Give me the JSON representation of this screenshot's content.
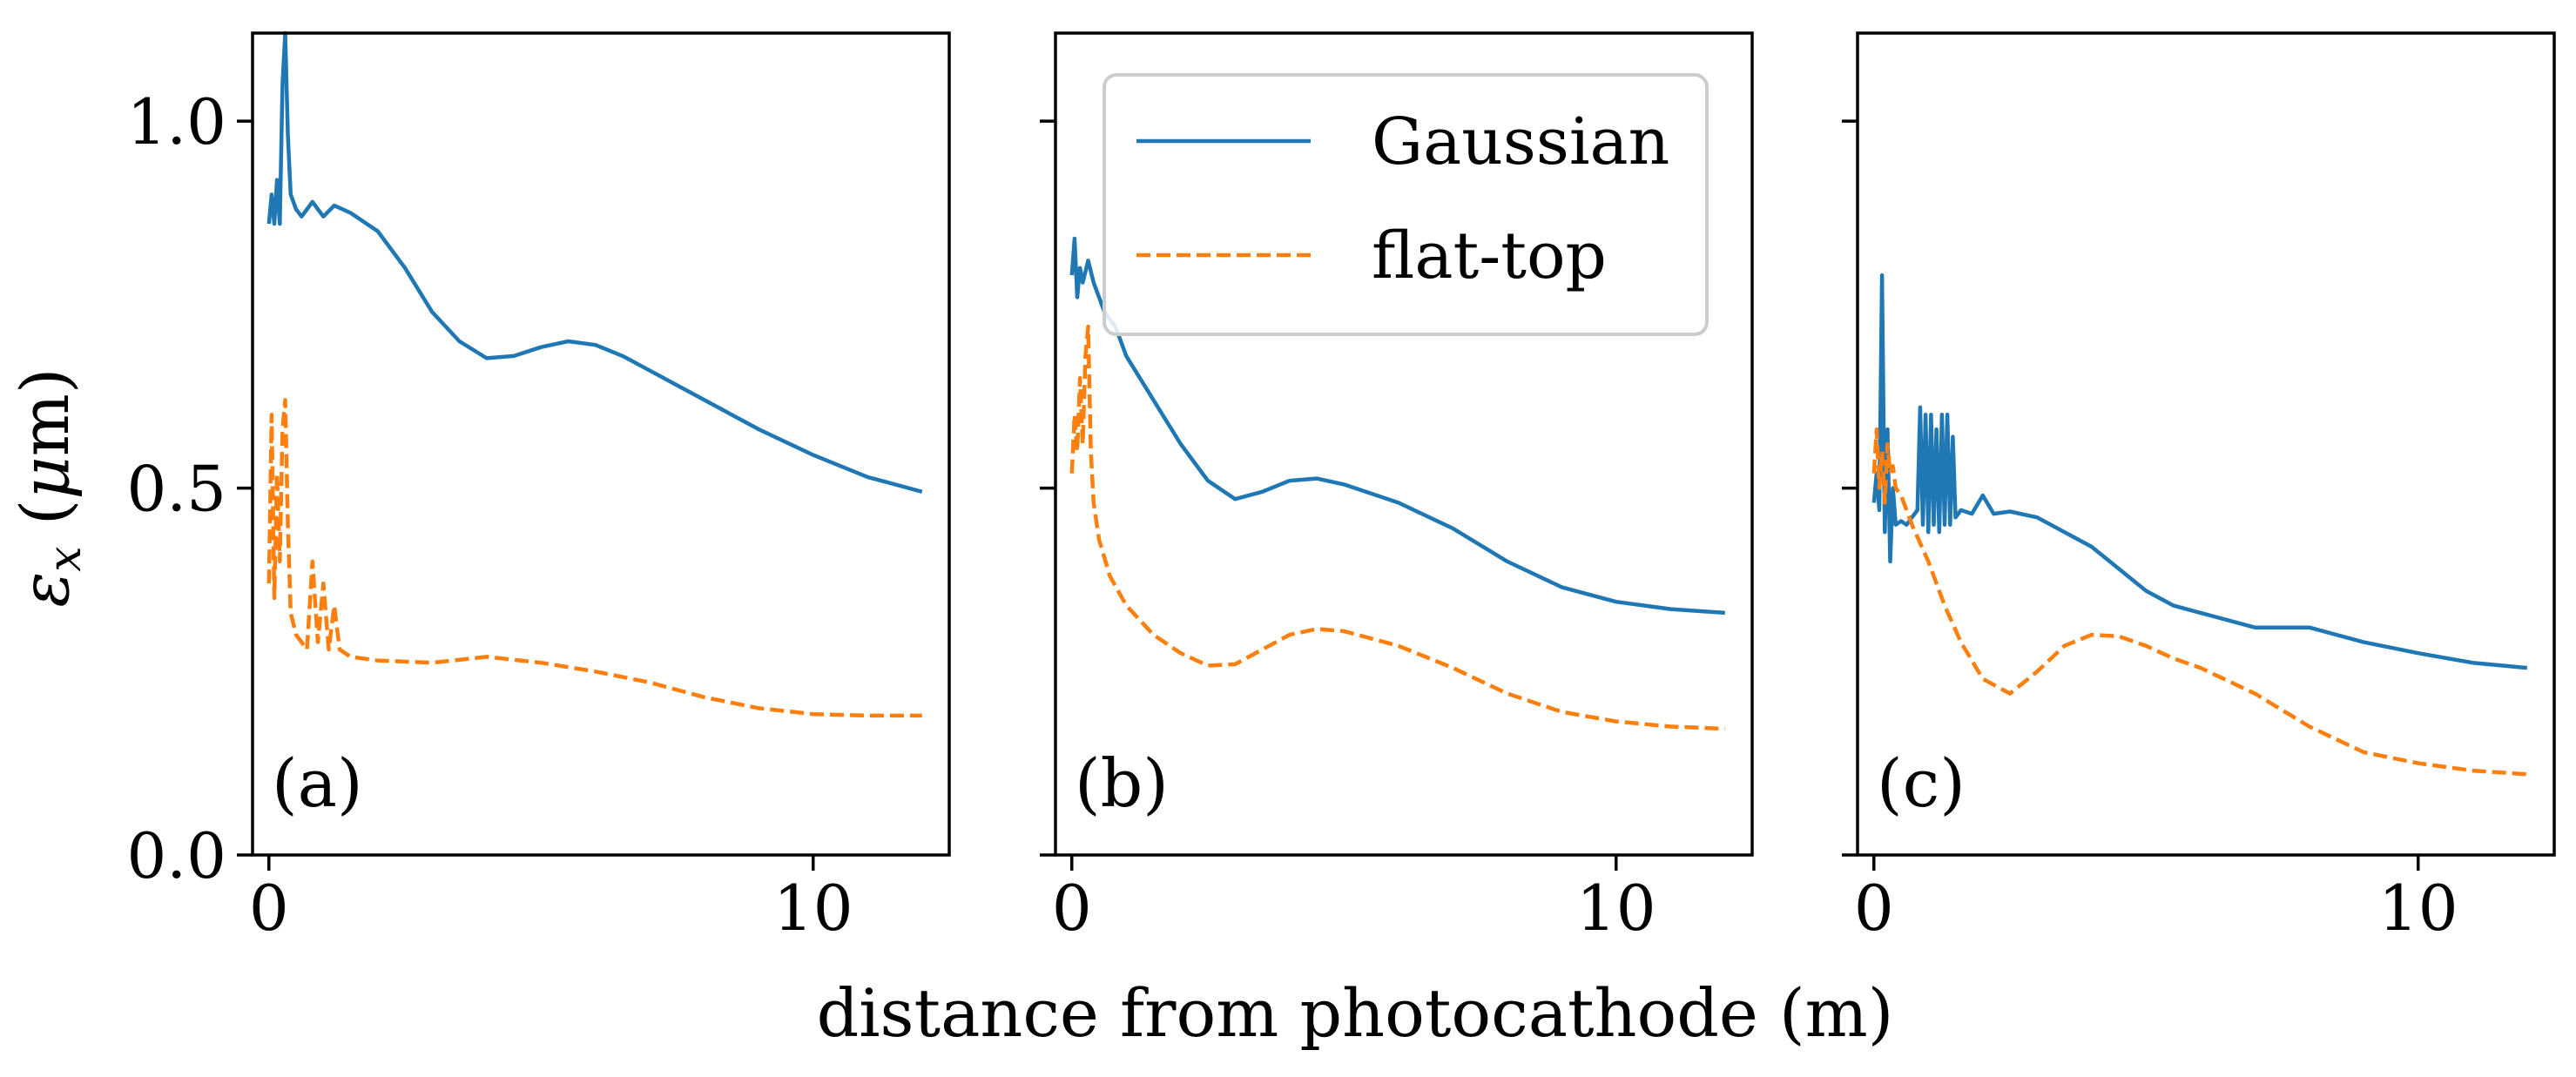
{
  "chart_data": [
    {
      "type": "line",
      "panel_label": "(a)",
      "xlim": [
        -0.3,
        12.5
      ],
      "ylim": [
        0.0,
        1.12
      ],
      "xticks": [
        0,
        10
      ],
      "xtick_labels": [
        "0",
        "10"
      ],
      "yticks": [
        0.0,
        0.5,
        1.0
      ],
      "ytick_labels": [
        "0.0",
        "0.5",
        "1.0"
      ],
      "series": [
        {
          "name": "Gaussian",
          "color": "#1f77b4",
          "style": "solid",
          "x": [
            0,
            0.05,
            0.1,
            0.15,
            0.2,
            0.25,
            0.3,
            0.35,
            0.4,
            0.5,
            0.6,
            0.8,
            1.0,
            1.2,
            1.5,
            2.0,
            2.5,
            3.0,
            3.5,
            4.0,
            4.5,
            5.0,
            5.5,
            6.0,
            6.5,
            7.0,
            8.0,
            9.0,
            10.0,
            11.0,
            12.0
          ],
          "y": [
            0.86,
            0.9,
            0.86,
            0.92,
            0.86,
            1.05,
            1.12,
            0.98,
            0.9,
            0.88,
            0.87,
            0.89,
            0.87,
            0.885,
            0.875,
            0.85,
            0.8,
            0.74,
            0.7,
            0.677,
            0.68,
            0.692,
            0.7,
            0.695,
            0.68,
            0.66,
            0.62,
            0.58,
            0.545,
            0.515,
            0.495
          ]
        },
        {
          "name": "flat-top",
          "color": "#ff7f0e",
          "style": "dashed",
          "x": [
            0,
            0.05,
            0.1,
            0.15,
            0.2,
            0.25,
            0.3,
            0.35,
            0.4,
            0.5,
            0.7,
            0.8,
            0.9,
            1.0,
            1.1,
            1.2,
            1.3,
            1.5,
            2.0,
            3.0,
            4.0,
            5.0,
            6.0,
            7.0,
            8.0,
            9.0,
            10.0,
            11.0,
            12.0
          ],
          "y": [
            0.37,
            0.6,
            0.35,
            0.52,
            0.4,
            0.58,
            0.62,
            0.45,
            0.33,
            0.3,
            0.28,
            0.4,
            0.29,
            0.37,
            0.28,
            0.34,
            0.28,
            0.27,
            0.265,
            0.262,
            0.27,
            0.262,
            0.25,
            0.235,
            0.215,
            0.2,
            0.192,
            0.19,
            0.19
          ]
        }
      ]
    },
    {
      "type": "line",
      "panel_label": "(b)",
      "xlim": [
        -0.3,
        12.5
      ],
      "ylim": [
        0.0,
        1.12
      ],
      "xticks": [
        0,
        10
      ],
      "xtick_labels": [
        "0",
        "10"
      ],
      "yticks": [
        0.0,
        0.5,
        1.0
      ],
      "ytick_labels": [
        "",
        "",
        ""
      ],
      "series": [
        {
          "name": "Gaussian",
          "color": "#1f77b4",
          "style": "solid",
          "x": [
            0,
            0.05,
            0.1,
            0.15,
            0.2,
            0.3,
            0.4,
            0.5,
            0.6,
            0.8,
            1.0,
            1.5,
            2.0,
            2.5,
            3.0,
            3.5,
            4.0,
            4.5,
            5.0,
            6.0,
            7.0,
            8.0,
            9.0,
            10.0,
            11.0,
            12.0
          ],
          "y": [
            0.79,
            0.84,
            0.76,
            0.8,
            0.78,
            0.81,
            0.78,
            0.76,
            0.74,
            0.72,
            0.68,
            0.62,
            0.56,
            0.51,
            0.485,
            0.495,
            0.51,
            0.513,
            0.505,
            0.48,
            0.445,
            0.4,
            0.365,
            0.345,
            0.335,
            0.33
          ]
        },
        {
          "name": "flat-top",
          "color": "#ff7f0e",
          "style": "dashed",
          "x": [
            0,
            0.05,
            0.1,
            0.15,
            0.2,
            0.25,
            0.3,
            0.35,
            0.4,
            0.5,
            0.7,
            1.0,
            1.5,
            2.0,
            2.5,
            3.0,
            3.5,
            4.0,
            4.5,
            5.0,
            6.0,
            7.0,
            8.0,
            9.0,
            10.0,
            11.0,
            12.0
          ],
          "y": [
            0.52,
            0.6,
            0.55,
            0.65,
            0.56,
            0.68,
            0.72,
            0.55,
            0.48,
            0.43,
            0.38,
            0.34,
            0.3,
            0.275,
            0.258,
            0.26,
            0.28,
            0.3,
            0.308,
            0.305,
            0.285,
            0.255,
            0.22,
            0.195,
            0.182,
            0.175,
            0.172
          ]
        }
      ]
    },
    {
      "type": "line",
      "panel_label": "(c)",
      "xlim": [
        -0.3,
        12.5
      ],
      "ylim": [
        0.0,
        1.12
      ],
      "xticks": [
        0,
        10
      ],
      "xtick_labels": [
        "0",
        "10"
      ],
      "yticks": [
        0.0,
        0.5,
        1.0
      ],
      "ytick_labels": [
        "",
        "",
        ""
      ],
      "series": [
        {
          "name": "Gaussian",
          "color": "#1f77b4",
          "style": "solid",
          "x": [
            0,
            0.05,
            0.1,
            0.15,
            0.2,
            0.25,
            0.3,
            0.35,
            0.4,
            0.5,
            0.6,
            0.7,
            0.8,
            0.85,
            0.9,
            0.95,
            1.0,
            1.05,
            1.1,
            1.15,
            1.2,
            1.25,
            1.3,
            1.35,
            1.4,
            1.45,
            1.5,
            1.6,
            1.8,
            2.0,
            2.2,
            2.5,
            3.0,
            3.5,
            4.0,
            4.5,
            5.0,
            5.5,
            6.0,
            7.0,
            8.0,
            9.0,
            10.0,
            11.0,
            12.0
          ],
          "y": [
            0.48,
            0.52,
            0.47,
            0.79,
            0.44,
            0.58,
            0.4,
            0.5,
            0.45,
            0.455,
            0.45,
            0.46,
            0.47,
            0.61,
            0.45,
            0.6,
            0.44,
            0.6,
            0.45,
            0.58,
            0.44,
            0.6,
            0.45,
            0.6,
            0.45,
            0.57,
            0.46,
            0.47,
            0.465,
            0.49,
            0.465,
            0.468,
            0.46,
            0.44,
            0.42,
            0.39,
            0.36,
            0.34,
            0.33,
            0.31,
            0.31,
            0.29,
            0.275,
            0.262,
            0.255
          ]
        },
        {
          "name": "flat-top",
          "color": "#ff7f0e",
          "style": "dashed",
          "x": [
            0,
            0.05,
            0.1,
            0.15,
            0.2,
            0.25,
            0.3,
            0.35,
            0.4,
            0.5,
            0.7,
            1.0,
            1.3,
            1.6,
            2.0,
            2.5,
            3.0,
            3.5,
            4.0,
            4.5,
            5.0,
            5.5,
            6.0,
            7.0,
            8.0,
            9.0,
            10.0,
            11.0,
            12.0
          ],
          "y": [
            0.52,
            0.58,
            0.5,
            0.55,
            0.48,
            0.56,
            0.52,
            0.53,
            0.5,
            0.49,
            0.45,
            0.4,
            0.34,
            0.29,
            0.24,
            0.22,
            0.25,
            0.285,
            0.3,
            0.298,
            0.285,
            0.268,
            0.255,
            0.22,
            0.175,
            0.14,
            0.125,
            0.115,
            0.11
          ]
        }
      ]
    }
  ],
  "legend": {
    "entries": [
      {
        "label": "Gaussian",
        "color": "#1f77b4",
        "style": "solid"
      },
      {
        "label": "flat-top",
        "color": "#ff7f0e",
        "style": "dashed"
      }
    ],
    "panel": 1,
    "placement": "upper-right"
  },
  "xlabel": "distance from photocathode (m)",
  "ylabel": {
    "symbol": "ε",
    "subscript": "x",
    "unit_open": " (",
    "unit_mu": "μ",
    "unit_close": "m)"
  }
}
